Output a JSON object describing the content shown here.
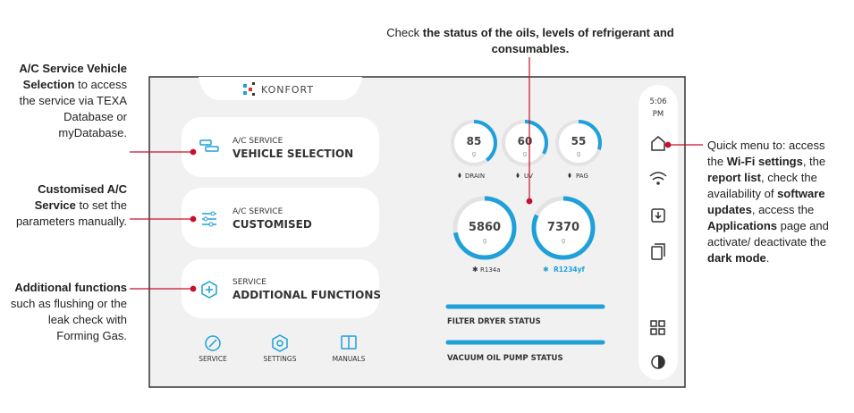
{
  "annotations": {
    "top": [
      "Check",
      "the status of the oils, levels of refrigerant and consumables."
    ],
    "vehicle_selection": [
      "A/C Service Vehicle Selection",
      "to access the service via TEXA Database or myDatabase."
    ],
    "customised": [
      "Customised A/C Service",
      "to set the parameters manually."
    ],
    "additional": [
      "Additional functions",
      "such as flushing or the leak check with Forming Gas."
    ],
    "quick_menu": [
      "Quick menu to: access the",
      "Wi-Fi settings",
      ", the",
      "report list",
      ", check the availability of",
      "software updates",
      ", access the",
      "Applications",
      "page and activate/ deactivate the",
      "dark mode",
      "."
    ]
  },
  "screen": {
    "logo": "KONFORT",
    "buttons": [
      {
        "label": "A/C SERVICE",
        "title": "VEHICLE SELECTION"
      },
      {
        "label": "A/C SERVICE",
        "title": "CUSTOMISED"
      },
      {
        "label": "SERVICE",
        "title": "ADDITIONAL FUNCTIONS"
      }
    ],
    "bottom_menu": [
      "SERVICE",
      "SETTINGS",
      "MANUALS"
    ],
    "gauges": [
      {
        "value": "85",
        "unit": "g",
        "label": "DRAIN"
      },
      {
        "value": "60",
        "unit": "g",
        "label": "UV"
      },
      {
        "value": "55",
        "unit": "g",
        "label": "PAG"
      },
      {
        "value": "5860",
        "unit": "g",
        "label": "R134a"
      },
      {
        "value": "7370",
        "unit": "g",
        "label": "R1234yf"
      }
    ],
    "status": [
      "FILTER DRYER STATUS",
      "VACUUM OIL PUMP STATUS"
    ],
    "time": [
      "5:06",
      "PM"
    ]
  }
}
